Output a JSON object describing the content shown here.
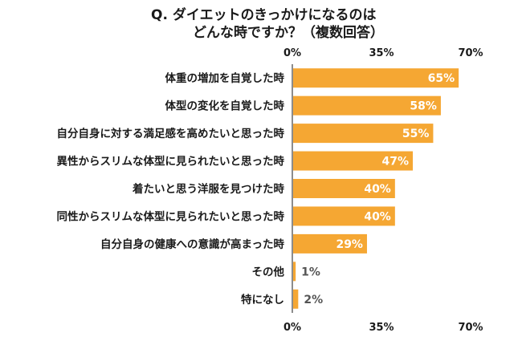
{
  "chart_data": {
    "type": "bar",
    "orientation": "horizontal",
    "title_line1": "Q. ダイエットのきっかけになるのは",
    "title_line2": "どんな時ですか？（複数回答）",
    "xlabel": "",
    "ylabel": "",
    "xlim": [
      0,
      70
    ],
    "ticks": [
      "0%",
      "35%",
      "70%"
    ],
    "tick_values": [
      0,
      35,
      70
    ],
    "categories": [
      "体重の増加を自覚した時",
      "体型の変化を自覚した時",
      "自分自身に対する満足感を高めたいと思った時",
      "異性からスリムな体型に見られたいと思った時",
      "着たいと思う洋服を見つけた時",
      "同性からスリムな体型に見られたいと思った時",
      "自分自身の健康への意識が高まった時",
      "その他",
      "特になし"
    ],
    "values": [
      65,
      58,
      55,
      47,
      40,
      40,
      29,
      1,
      2
    ],
    "value_labels": [
      "65%",
      "58%",
      "55%",
      "47%",
      "40%",
      "40%",
      "29%",
      "1%",
      "2%"
    ],
    "bar_color": "#F5A733",
    "axis_color": "#1a1a1a",
    "grid": false,
    "legend": "none"
  }
}
